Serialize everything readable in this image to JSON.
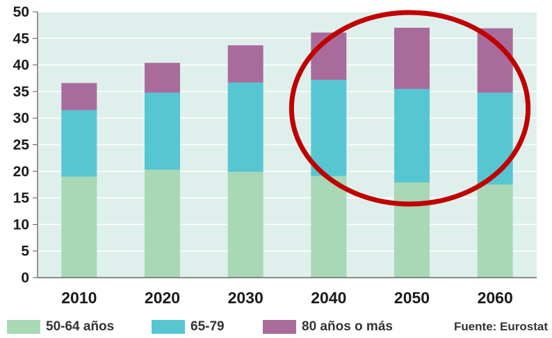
{
  "chart_data": {
    "type": "bar",
    "stacked": true,
    "categories": [
      "2010",
      "2020",
      "2030",
      "2040",
      "2050",
      "2060"
    ],
    "series": [
      {
        "name": "50-64 años",
        "color": "#a8d8b5",
        "values": [
          19,
          20.3,
          19.9,
          19.1,
          17.9,
          17.5
        ]
      },
      {
        "name": "65-79",
        "color": "#56c6d2",
        "values": [
          12.5,
          14.5,
          16.8,
          18.1,
          17.6,
          17.3
        ]
      },
      {
        "name": "80 años o más",
        "color": "#a96b9b",
        "values": [
          5.1,
          5.6,
          7.0,
          8.9,
          11.5,
          12.1
        ]
      }
    ],
    "ylim": [
      0,
      50
    ],
    "yticks": [
      "0",
      "5",
      "10",
      "15",
      "20",
      "25",
      "30",
      "35",
      "40",
      "45",
      "50"
    ],
    "grid": true,
    "plot_background": "#dff0ec",
    "legend_position": "bottom",
    "highlight": {
      "shape": "ellipse",
      "color": "#c00000",
      "covers_categories": [
        "2040",
        "2050",
        "2060"
      ]
    }
  },
  "source_text": "Fuente: Eurostat"
}
